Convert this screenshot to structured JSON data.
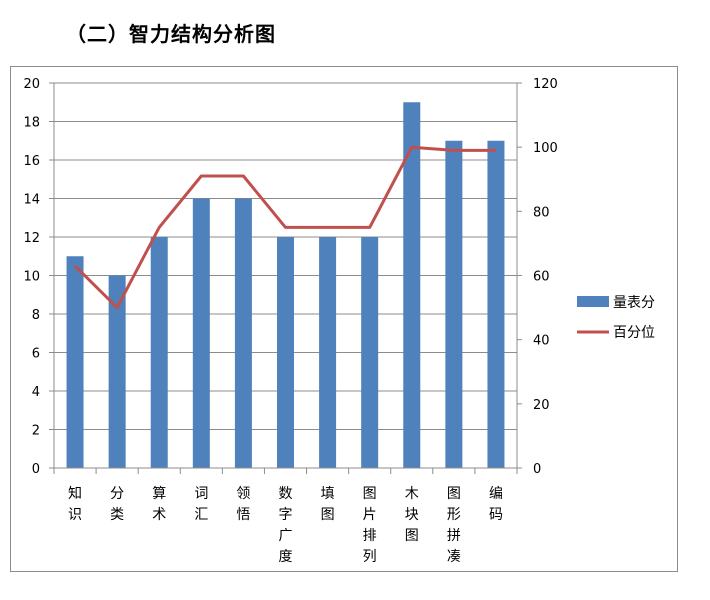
{
  "page": {
    "title": "（二）智力结构分析图"
  },
  "chart_data": {
    "type": "bar+line",
    "categories": [
      "知识",
      "分类",
      "算术",
      "词汇",
      "领悟",
      "数字广度",
      "填图",
      "图片排列",
      "木块图",
      "图形拼凑",
      "编码"
    ],
    "series": [
      {
        "name": "量表分",
        "type": "bar",
        "axis": "left",
        "color": "#4F81BD",
        "values": [
          11,
          10,
          12,
          14,
          14,
          12,
          12,
          12,
          19,
          17,
          17
        ]
      },
      {
        "name": "百分位",
        "type": "line",
        "axis": "right",
        "color": "#C0504D",
        "values": [
          63,
          50,
          75,
          91,
          91,
          75,
          75,
          75,
          100,
          99,
          99
        ]
      }
    ],
    "y_left": {
      "min": 0,
      "max": 20,
      "ticks": [
        0,
        2,
        4,
        6,
        8,
        10,
        12,
        14,
        16,
        18,
        20
      ]
    },
    "y_right": {
      "min": 0,
      "max": 120,
      "ticks": [
        0,
        20,
        40,
        60,
        80,
        100,
        120
      ]
    },
    "grid": true,
    "legend_position": "right"
  }
}
